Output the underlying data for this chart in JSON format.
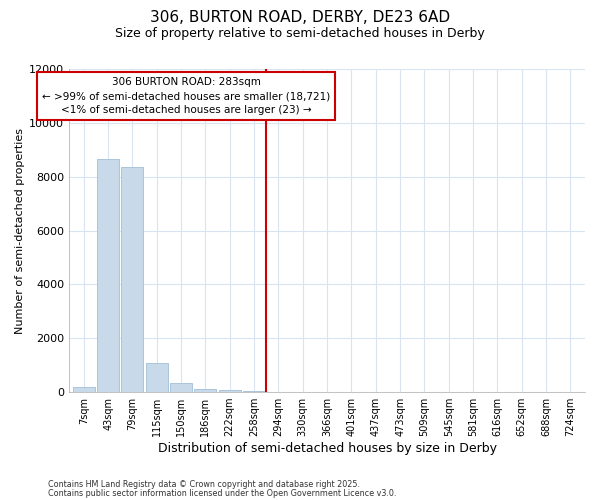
{
  "title_line1": "306, BURTON ROAD, DERBY, DE23 6AD",
  "title_line2": "Size of property relative to semi-detached houses in Derby",
  "xlabel": "Distribution of semi-detached houses by size in Derby",
  "ylabel": "Number of semi-detached properties",
  "bar_color": "#c8daea",
  "bar_edge_color": "#aac4dc",
  "vline_color": "#cc0000",
  "vline_x_index": 8,
  "annotation_title": "306 BURTON ROAD: 283sqm",
  "annotation_line2": "← >99% of semi-detached houses are smaller (18,721)",
  "annotation_line3": "<1% of semi-detached houses are larger (23) →",
  "annotation_edge_color": "#cc0000",
  "categories": [
    "7sqm",
    "43sqm",
    "79sqm",
    "115sqm",
    "150sqm",
    "186sqm",
    "222sqm",
    "258sqm",
    "294sqm",
    "330sqm",
    "366sqm",
    "401sqm",
    "437sqm",
    "473sqm",
    "509sqm",
    "545sqm",
    "581sqm",
    "616sqm",
    "652sqm",
    "688sqm",
    "724sqm"
  ],
  "values": [
    200,
    8650,
    8350,
    1075,
    340,
    110,
    65,
    55,
    0,
    0,
    0,
    0,
    0,
    0,
    0,
    0,
    0,
    0,
    0,
    0,
    0
  ],
  "ylim": [
    0,
    12000
  ],
  "yticks": [
    0,
    2000,
    4000,
    6000,
    8000,
    10000,
    12000
  ],
  "footer_line1": "Contains HM Land Registry data © Crown copyright and database right 2025.",
  "footer_line2": "Contains public sector information licensed under the Open Government Licence v3.0.",
  "background_color": "#ffffff",
  "grid_color": "#d8e4f0"
}
